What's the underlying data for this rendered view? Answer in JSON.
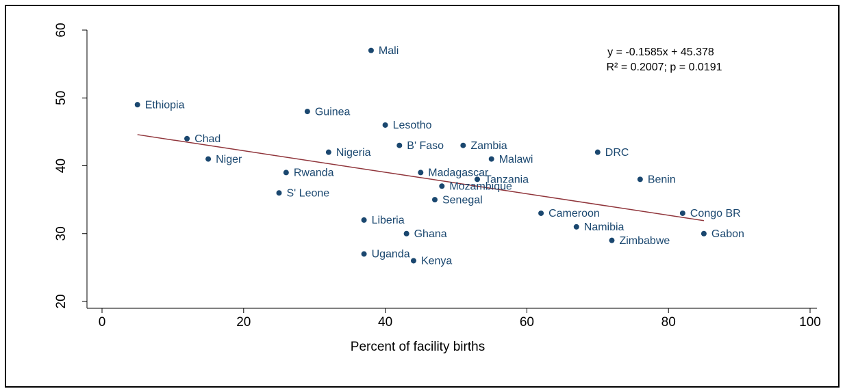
{
  "chart_data": {
    "type": "scatter",
    "xlabel": "Percent of facility births",
    "annotations": [
      "y = -0.1585x + 45.378",
      "R² = 0.2007; p = 0.0191"
    ],
    "point_labels": [
      "Mali",
      "Ethiopia",
      "Guinea",
      "Lesotho",
      "Chad",
      "B' Faso",
      "Zambia",
      "Nigeria",
      "DRC",
      "Niger",
      "Malawi",
      "Rwanda",
      "Madagascar",
      "Tanzania",
      "Benin",
      "Mozambique",
      "S' Leone",
      "Senegal",
      "Cameroon",
      "Congo BR",
      "Liberia",
      "Namibia",
      "Ghana",
      "Gabon",
      "Zimbabwe",
      "Uganda",
      "Kenya"
    ],
    "x": [
      38,
      5,
      29,
      40,
      12,
      42,
      51,
      32,
      70,
      15,
      55,
      26,
      45,
      53,
      76,
      48,
      25,
      47,
      62,
      82,
      37,
      67,
      43,
      85,
      72,
      37,
      44
    ],
    "values": [
      57,
      49,
      48,
      46,
      44,
      43,
      43,
      42,
      42,
      41,
      41,
      39,
      39,
      38,
      38,
      37,
      36,
      35,
      33,
      33,
      32,
      31,
      30,
      30,
      29,
      27,
      26
    ],
    "color": "#1a476f",
    "trendline": {
      "x": [
        5,
        85
      ],
      "y": [
        44.59,
        31.91
      ],
      "color": "#90353b"
    },
    "xlim": [
      0,
      100
    ],
    "xticks": [
      0,
      20,
      40,
      60,
      80,
      100
    ],
    "ylim": [
      20,
      60
    ],
    "yticks": [
      20,
      30,
      40,
      50,
      60
    ]
  }
}
